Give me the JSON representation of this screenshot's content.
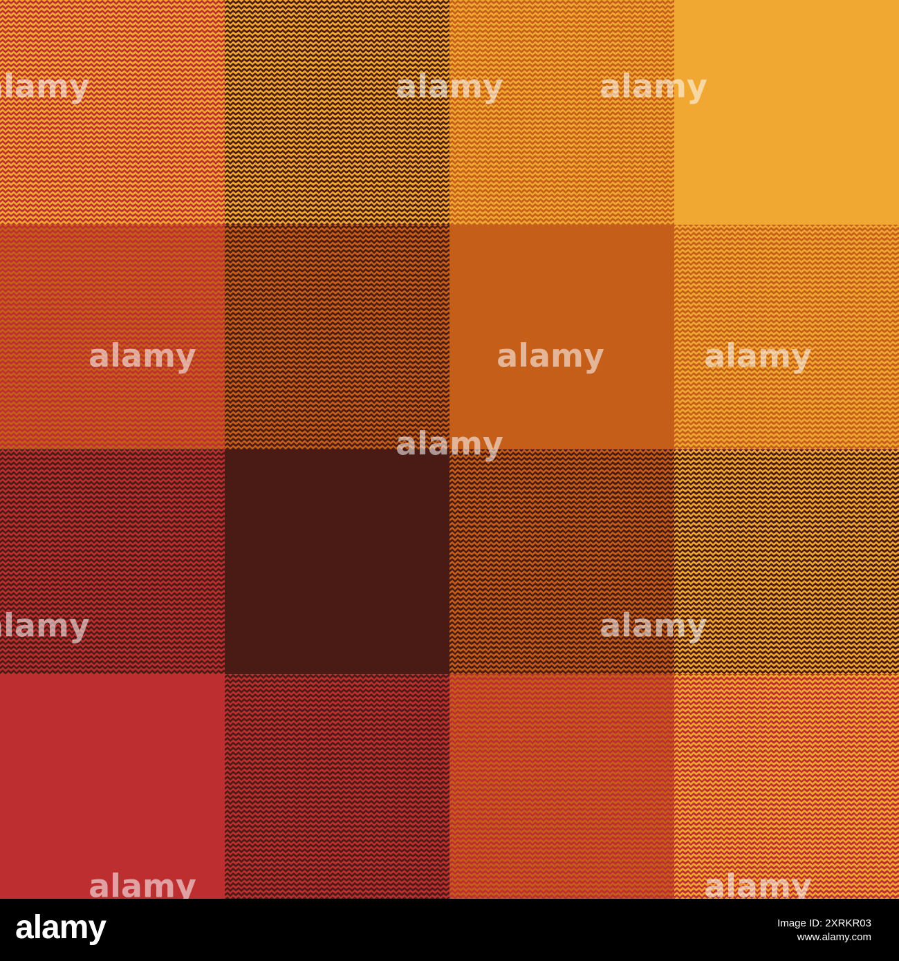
{
  "watermark": "alamy",
  "footer": {
    "logo": "alamy",
    "image_id": "Image ID: 2XRKR03",
    "url": "www.alamy.com"
  }
}
